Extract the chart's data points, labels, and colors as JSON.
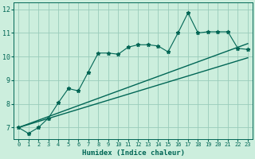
{
  "xlabel": "Humidex (Indice chaleur)",
  "bg_color": "#cceedd",
  "grid_color": "#99ccbb",
  "line_color": "#006655",
  "xlim": [
    -0.5,
    23.5
  ],
  "ylim": [
    6.5,
    12.3
  ],
  "yticks": [
    7,
    8,
    9,
    10,
    11,
    12
  ],
  "xticks": [
    0,
    1,
    2,
    3,
    4,
    5,
    6,
    7,
    8,
    9,
    10,
    11,
    12,
    13,
    14,
    15,
    16,
    17,
    18,
    19,
    20,
    21,
    22,
    23
  ],
  "marker_x": [
    0,
    1,
    2,
    3,
    4,
    5,
    6,
    7,
    8,
    9,
    10,
    11,
    12,
    13,
    14,
    15,
    16,
    17,
    18,
    19,
    20,
    21,
    22,
    23
  ],
  "marker_y": [
    7.0,
    6.75,
    7.0,
    7.4,
    8.05,
    8.65,
    8.55,
    9.35,
    10.15,
    10.15,
    10.1,
    10.4,
    10.5,
    10.5,
    10.45,
    10.2,
    11.0,
    11.85,
    11.0,
    11.05,
    11.05,
    11.05,
    10.35,
    10.3
  ],
  "trend1_x": [
    0,
    23
  ],
  "trend1_y": [
    7.0,
    10.55
  ],
  "trend2_x": [
    0,
    23
  ],
  "trend2_y": [
    7.0,
    9.95
  ]
}
